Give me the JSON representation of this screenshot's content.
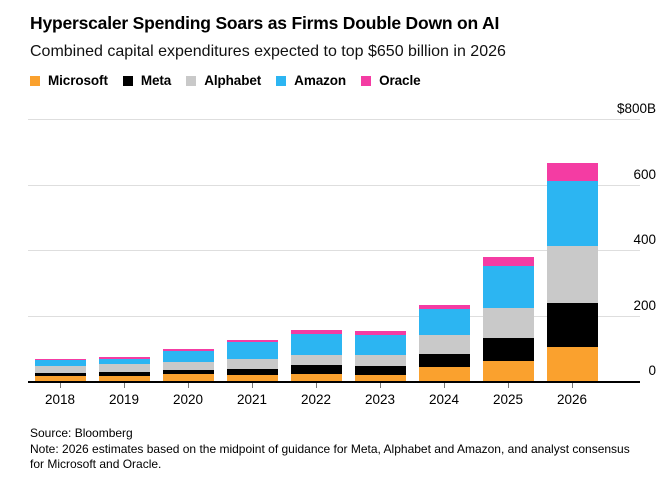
{
  "header": {
    "title": "Hyperscaler Spending Soars as Firms Double Down on AI",
    "subtitle": "Combined capital expenditures expected to top $650 billion in 2026"
  },
  "colors": {
    "microsoft": "#FAA12E",
    "meta": "#000000",
    "alphabet": "#C9C9C9",
    "amazon": "#2CB5F2",
    "oracle": "#F43CA3",
    "gridline": "#DEDEDE",
    "axis": "#000000",
    "tick": "#767676"
  },
  "chart_data": {
    "type": "bar",
    "stacked": true,
    "unit": "billions USD",
    "title": "Hyperscaler Spending Soars as Firms Double Down on AI",
    "subtitle": "Combined capital expenditures expected to top $650 billion in 2026",
    "categories": [
      "2018",
      "2019",
      "2020",
      "2021",
      "2022",
      "2023",
      "2024",
      "2025",
      "2026"
    ],
    "series": [
      {
        "name": "Microsoft",
        "color": "#FAA12E",
        "values": [
          14,
          15,
          20,
          17,
          20,
          17,
          43,
          62,
          104
        ]
      },
      {
        "name": "Meta",
        "color": "#000000",
        "values": [
          12,
          14,
          14,
          20,
          28,
          30,
          40,
          68,
          133
        ]
      },
      {
        "name": "Alphabet",
        "color": "#C9C9C9",
        "values": [
          21,
          24,
          24,
          29,
          31,
          32,
          57,
          94,
          175
        ]
      },
      {
        "name": "Amazon",
        "color": "#2CB5F2",
        "values": [
          16,
          15,
          35,
          53,
          66,
          62,
          79,
          128,
          199
        ]
      },
      {
        "name": "Oracle",
        "color": "#F43CA3",
        "values": [
          4,
          5,
          5,
          6,
          10,
          11,
          14,
          28,
          54
        ]
      }
    ],
    "ylim": [
      0,
      800
    ],
    "yticks": [
      {
        "value": 800,
        "label": "$800B"
      },
      {
        "value": 600,
        "label": "600"
      },
      {
        "value": 400,
        "label": "400"
      },
      {
        "value": 200,
        "label": "200"
      },
      {
        "value": 0,
        "label": "0"
      }
    ],
    "grid": "horizontal",
    "legend_position": "top"
  },
  "footer": {
    "source": "Source: Bloomberg",
    "note": "Note: 2026 estimates based on the midpoint of guidance for Meta, Alphabet and Amazon, and analyst consensus for Microsoft and Oracle."
  }
}
